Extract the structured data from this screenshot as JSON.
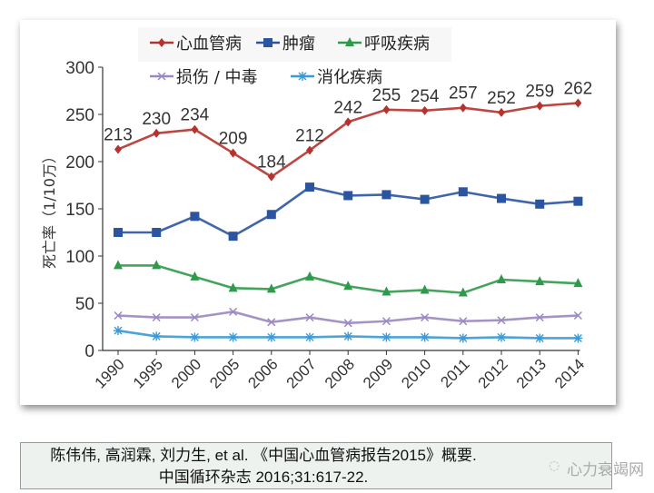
{
  "chart_data": {
    "type": "line",
    "ylabel": "死亡率（1/10万）",
    "ylim": [
      0,
      300
    ],
    "yticks": [
      0,
      50,
      100,
      150,
      200,
      250,
      300
    ],
    "categories": [
      "1990",
      "1995",
      "2000",
      "2005",
      "2006",
      "2007",
      "2008",
      "2009",
      "2010",
      "2011",
      "2012",
      "2013",
      "2014"
    ],
    "legend_placement": "top",
    "grid": false,
    "series": [
      {
        "name": "心血管病",
        "color": "#b5332e",
        "marker": "diamond",
        "labeled": true,
        "values": [
          213,
          230,
          234,
          209,
          184,
          212,
          242,
          255,
          254,
          257,
          252,
          259,
          262
        ]
      },
      {
        "name": "肿瘤",
        "color": "#2b55a0",
        "marker": "square",
        "labeled": false,
        "values": [
          125,
          125,
          142,
          121,
          144,
          173,
          164,
          165,
          160,
          168,
          161,
          155,
          158
        ]
      },
      {
        "name": "呼吸疾病",
        "color": "#2f9a4a",
        "marker": "triangle",
        "labeled": false,
        "values": [
          90,
          90,
          78,
          66,
          65,
          78,
          68,
          62,
          64,
          61,
          75,
          73,
          71
        ]
      },
      {
        "name": "损伤 / 中毒",
        "color": "#9a88c0",
        "marker": "x",
        "labeled": false,
        "values": [
          37,
          35,
          35,
          41,
          30,
          35,
          29,
          31,
          35,
          31,
          32,
          35,
          37
        ]
      },
      {
        "name": "消化疾病",
        "color": "#3a9ad6",
        "marker": "star",
        "labeled": false,
        "values": [
          21,
          15,
          14,
          14,
          14,
          14,
          15,
          14,
          14,
          13,
          14,
          13,
          13
        ]
      }
    ]
  },
  "footer": {
    "line1": "陈伟伟, 高润霖, 刘力生, et al. 《中国心血管病报告2015》概要.",
    "line2": "中国循环杂志 2016;31:617-22."
  },
  "watermark": "心力衰竭网"
}
